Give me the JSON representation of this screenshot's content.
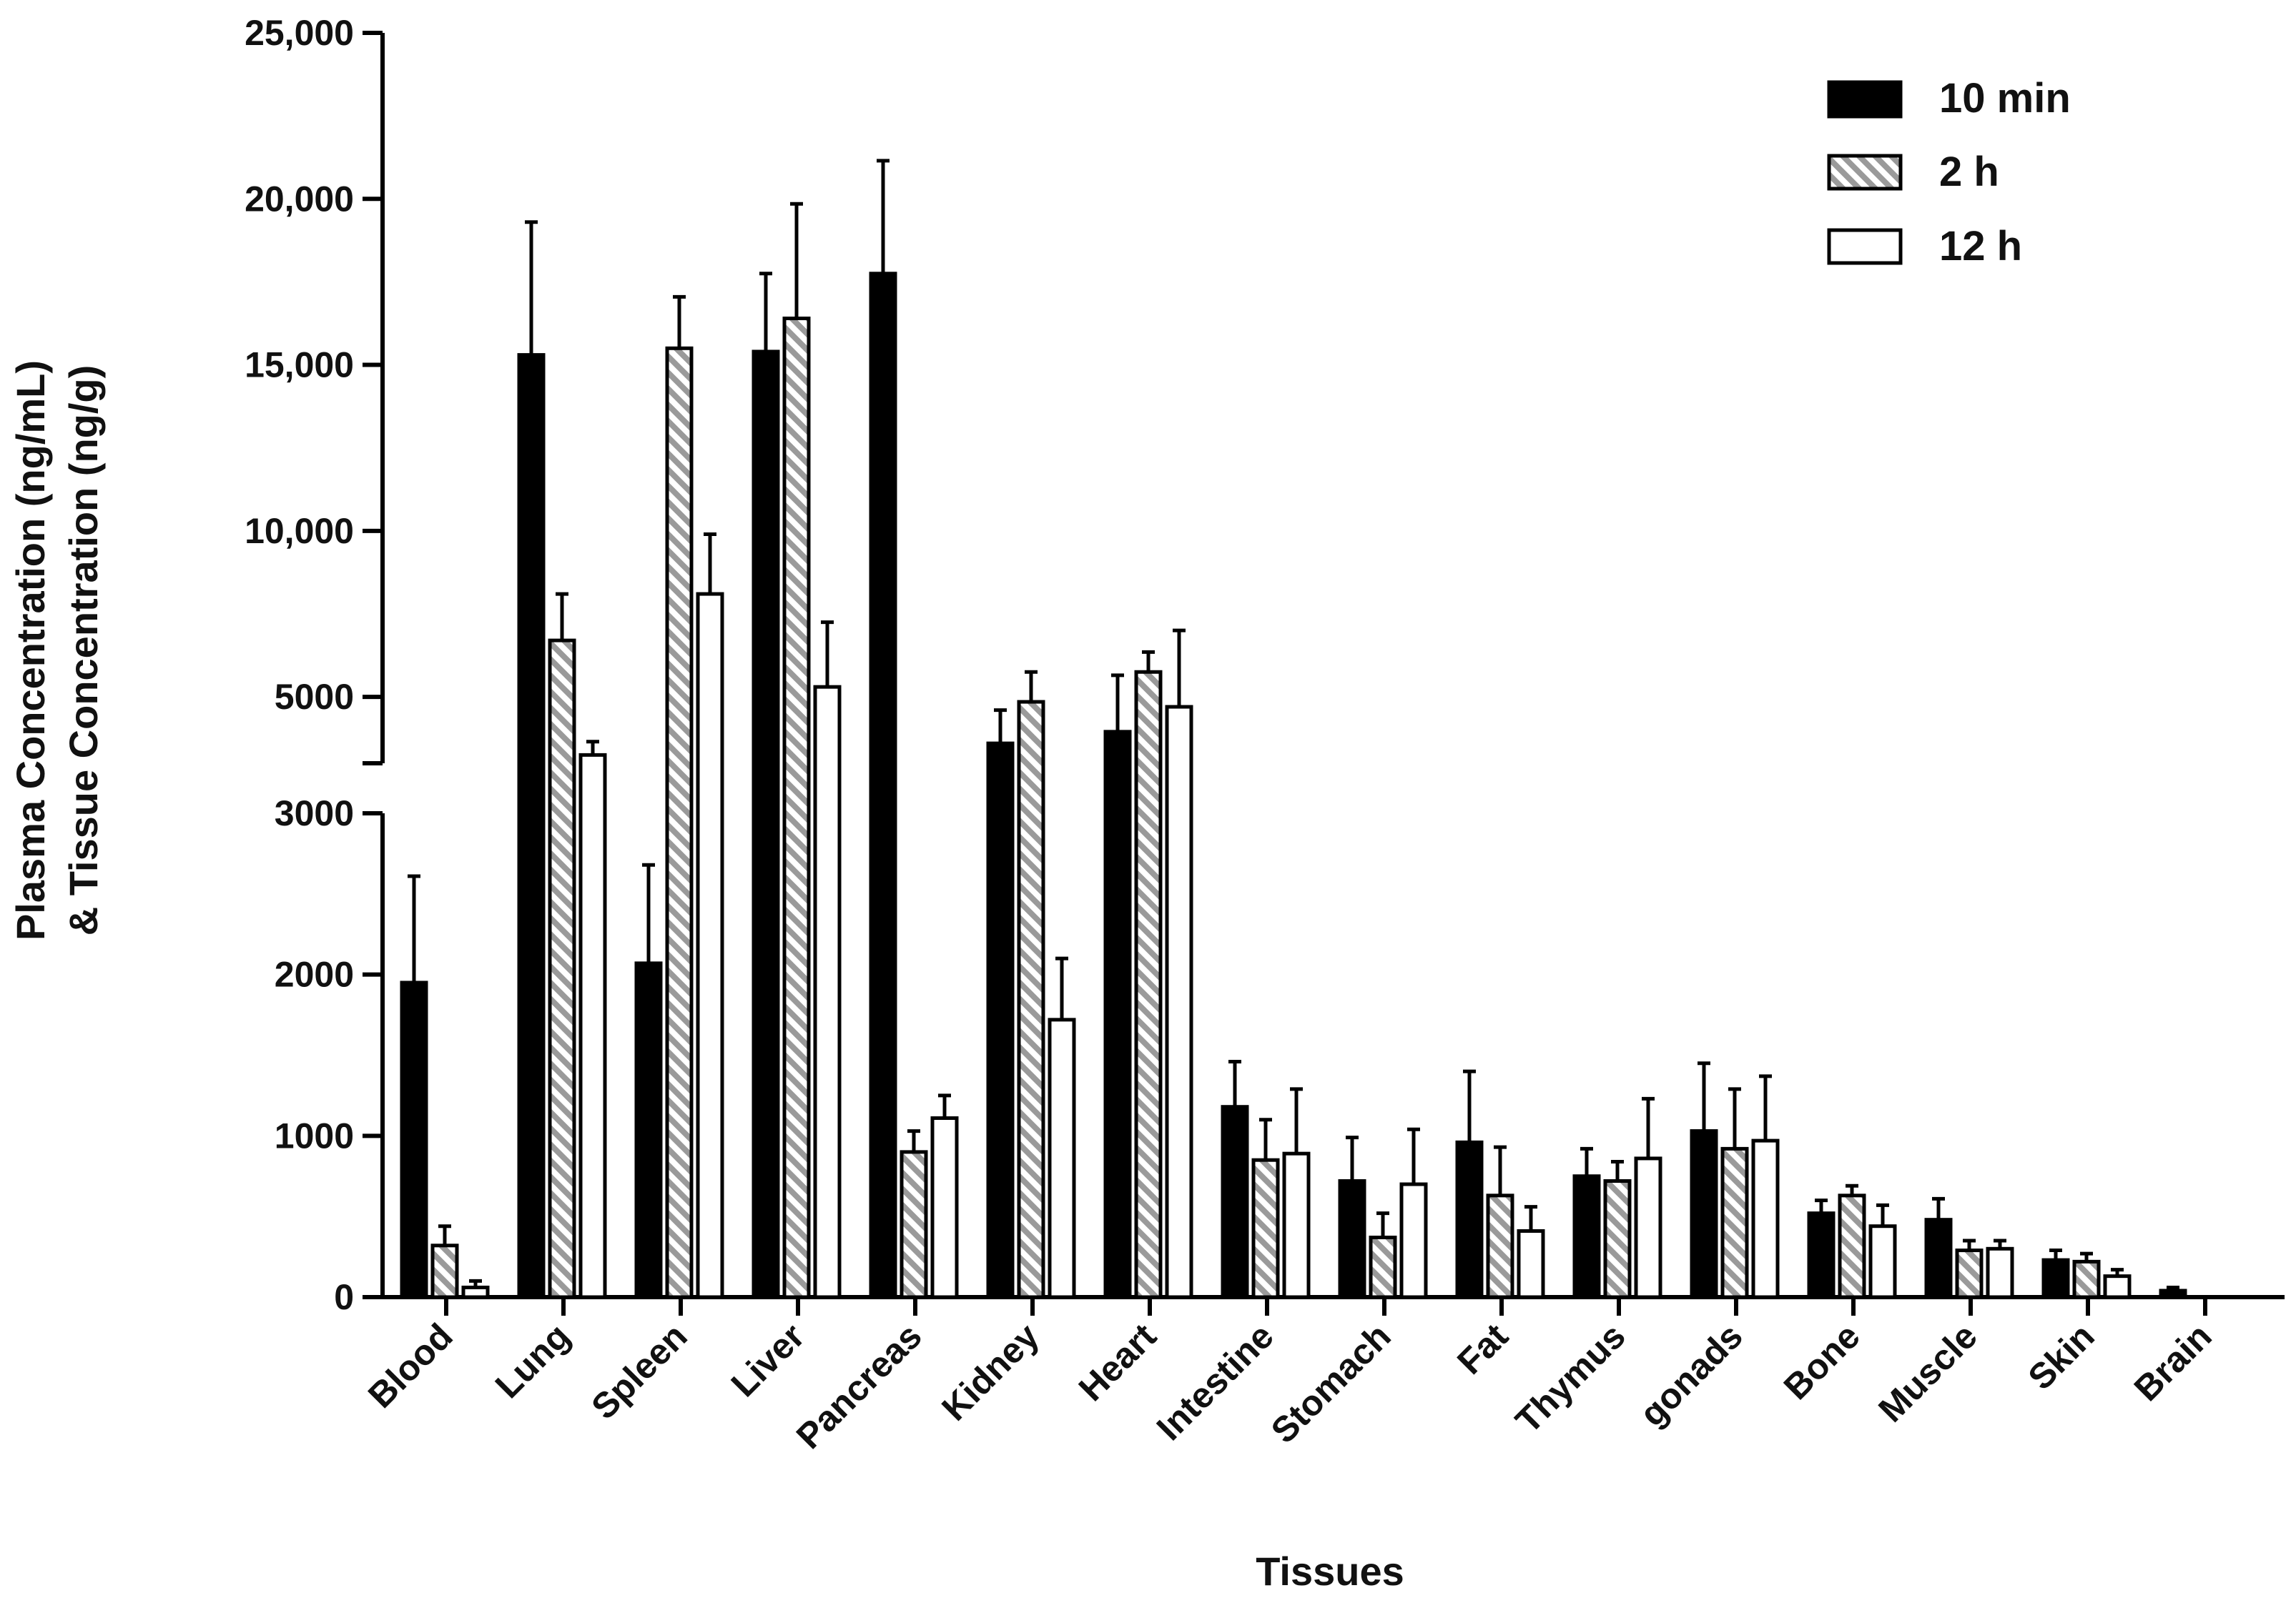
{
  "chart_data": {
    "type": "bar",
    "ylabel_line1": "Plasma Concentration (ng/mL)",
    "ylabel_line2": "& Tissue Concentration (ng/g)",
    "xlabel": "Tissues",
    "categories": [
      "Blood",
      "Lung",
      "Spleen",
      "Liver",
      "Pancreas",
      "Kidney",
      "Heart",
      "Intestine",
      "Stomach",
      "Fat",
      "Thymus",
      "gonads",
      "Bone",
      "Muscle",
      "Skin",
      "Brain"
    ],
    "series": [
      {
        "name": "10 min",
        "style": "solid",
        "values": [
          1950,
          15300,
          2070,
          15400,
          17750,
          3600,
          3950,
          1180,
          720,
          960,
          750,
          1030,
          520,
          480,
          230,
          40
        ],
        "errors": [
          660,
          4000,
          610,
          2350,
          3400,
          1000,
          1700,
          280,
          270,
          440,
          170,
          420,
          80,
          130,
          60,
          20
        ]
      },
      {
        "name": "2 h",
        "style": "hatched",
        "values": [
          320,
          6700,
          15500,
          16400,
          900,
          4850,
          5750,
          850,
          370,
          630,
          720,
          920,
          630,
          290,
          220,
          0
        ],
        "errors": [
          120,
          1400,
          1550,
          3450,
          130,
          900,
          600,
          250,
          150,
          300,
          120,
          370,
          60,
          60,
          50,
          0
        ],
        "break_bars": [
          1,
          2,
          3,
          5,
          6
        ]
      },
      {
        "name": "12 h",
        "style": "open",
        "values": [
          60,
          3250,
          8100,
          5300,
          1110,
          1720,
          4700,
          890,
          700,
          410,
          860,
          970,
          440,
          300,
          130,
          0
        ],
        "errors": [
          40,
          400,
          1800,
          1950,
          140,
          380,
          2300,
          400,
          340,
          150,
          370,
          400,
          130,
          50,
          40,
          0
        ]
      }
    ],
    "y_lower_range": [
      0,
      3000
    ],
    "y_lower_ticks": [
      "0",
      "1000",
      "2000",
      "3000"
    ],
    "y_lower_tick_values": [
      0,
      1000,
      2000,
      3000
    ],
    "y_upper_range": [
      3000,
      25000
    ],
    "y_upper_ticks": [
      "5000",
      "10,000",
      "15,000",
      "20,000",
      "25,000"
    ],
    "y_upper_tick_values": [
      5000,
      10000,
      15000,
      20000,
      25000
    ],
    "axis_break": true,
    "legend": {
      "position": "top-right",
      "entries": [
        "10 min",
        "2 h",
        "12 h"
      ]
    },
    "colors": {
      "solid": "#000000",
      "hatch_stripe": "#9a9a9a",
      "open_fill": "#ffffff",
      "stroke": "#000000"
    }
  }
}
